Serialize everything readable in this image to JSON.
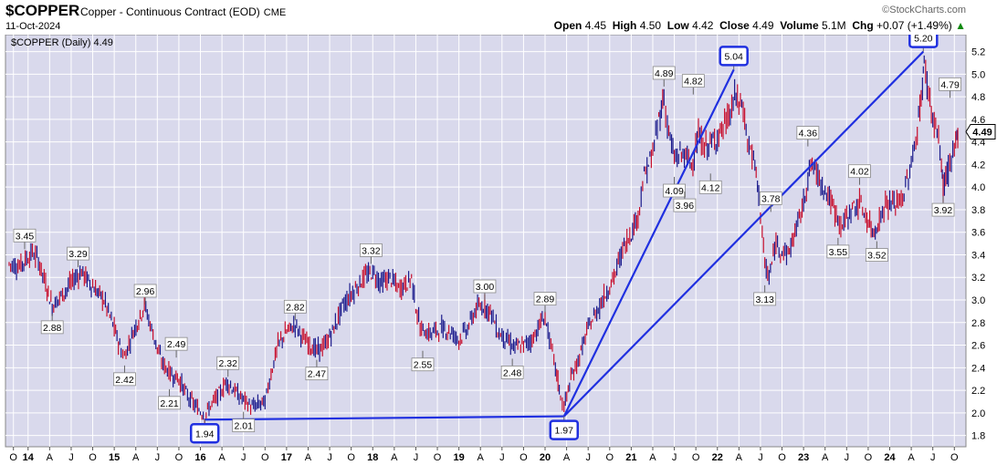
{
  "header": {
    "symbol": "$COPPER",
    "description": "Copper - Continuous Contract (EOD)",
    "exchange": "CME",
    "date": "11-Oct-2024",
    "brand": "©StockCharts.com",
    "open_label": "Open",
    "open": "4.45",
    "high_label": "High",
    "high": "4.50",
    "low_label": "Low",
    "low": "4.42",
    "close_label": "Close",
    "close": "4.49",
    "volume_label": "Volume",
    "volume": "5.1M",
    "chg_label": "Chg",
    "chg": "+0.07 (+1.49%)",
    "chg_arrow": "▲"
  },
  "chart_data": {
    "type": "line",
    "legend_text": "$COPPER (Daily) 4.49",
    "last_price": "4.49",
    "ylim": [
      1.7,
      5.35
    ],
    "y_ticks": [
      1.8,
      2.0,
      2.2,
      2.4,
      2.6,
      2.8,
      3.0,
      3.2,
      3.4,
      3.6,
      3.8,
      4.0,
      4.2,
      4.4,
      4.6,
      4.8,
      5.0,
      5.2
    ],
    "grid": true,
    "x_ticks": [
      {
        "t": 2013.83,
        "label": "O"
      },
      {
        "t": 2014.0,
        "label": "14"
      },
      {
        "t": 2014.25,
        "label": "A"
      },
      {
        "t": 2014.5,
        "label": "J"
      },
      {
        "t": 2014.75,
        "label": "O"
      },
      {
        "t": 2015.0,
        "label": "15"
      },
      {
        "t": 2015.25,
        "label": "A"
      },
      {
        "t": 2015.5,
        "label": "J"
      },
      {
        "t": 2015.75,
        "label": "O"
      },
      {
        "t": 2016.0,
        "label": "16"
      },
      {
        "t": 2016.25,
        "label": "A"
      },
      {
        "t": 2016.5,
        "label": "J"
      },
      {
        "t": 2016.75,
        "label": "O"
      },
      {
        "t": 2017.0,
        "label": "17"
      },
      {
        "t": 2017.25,
        "label": "A"
      },
      {
        "t": 2017.5,
        "label": "J"
      },
      {
        "t": 2017.75,
        "label": "O"
      },
      {
        "t": 2018.0,
        "label": "18"
      },
      {
        "t": 2018.25,
        "label": "A"
      },
      {
        "t": 2018.5,
        "label": "J"
      },
      {
        "t": 2018.75,
        "label": "O"
      },
      {
        "t": 2019.0,
        "label": "19"
      },
      {
        "t": 2019.25,
        "label": "A"
      },
      {
        "t": 2019.5,
        "label": "J"
      },
      {
        "t": 2019.75,
        "label": "O"
      },
      {
        "t": 2020.0,
        "label": "20"
      },
      {
        "t": 2020.25,
        "label": "A"
      },
      {
        "t": 2020.5,
        "label": "J"
      },
      {
        "t": 2020.75,
        "label": "O"
      },
      {
        "t": 2021.0,
        "label": "21"
      },
      {
        "t": 2021.25,
        "label": "A"
      },
      {
        "t": 2021.5,
        "label": "J"
      },
      {
        "t": 2021.75,
        "label": "O"
      },
      {
        "t": 2022.0,
        "label": "22"
      },
      {
        "t": 2022.25,
        "label": "A"
      },
      {
        "t": 2022.5,
        "label": "J"
      },
      {
        "t": 2022.75,
        "label": "O"
      },
      {
        "t": 2023.0,
        "label": "23"
      },
      {
        "t": 2023.25,
        "label": "A"
      },
      {
        "t": 2023.5,
        "label": "J"
      },
      {
        "t": 2023.75,
        "label": "O"
      },
      {
        "t": 2024.0,
        "label": "24"
      },
      {
        "t": 2024.25,
        "label": "A"
      },
      {
        "t": 2024.5,
        "label": "J"
      },
      {
        "t": 2024.75,
        "label": "O"
      }
    ],
    "price_path": [
      [
        2013.78,
        3.32
      ],
      [
        2013.9,
        3.3
      ],
      [
        2014.05,
        3.42
      ],
      [
        2014.12,
        3.35
      ],
      [
        2014.22,
        3.1
      ],
      [
        2014.28,
        2.95
      ],
      [
        2014.4,
        3.05
      ],
      [
        2014.55,
        3.2
      ],
      [
        2014.62,
        3.25
      ],
      [
        2014.75,
        3.12
      ],
      [
        2014.88,
        3.0
      ],
      [
        2015.0,
        2.75
      ],
      [
        2015.08,
        2.55
      ],
      [
        2015.12,
        2.5
      ],
      [
        2015.22,
        2.72
      ],
      [
        2015.3,
        2.85
      ],
      [
        2015.35,
        2.96
      ],
      [
        2015.45,
        2.7
      ],
      [
        2015.55,
        2.45
      ],
      [
        2015.65,
        2.35
      ],
      [
        2015.75,
        2.3
      ],
      [
        2015.85,
        2.15
      ],
      [
        2015.95,
        2.05
      ],
      [
        2016.05,
        1.98
      ],
      [
        2016.15,
        2.1
      ],
      [
        2016.25,
        2.2
      ],
      [
        2016.3,
        2.28
      ],
      [
        2016.45,
        2.15
      ],
      [
        2016.6,
        2.05
      ],
      [
        2016.75,
        2.1
      ],
      [
        2016.82,
        2.35
      ],
      [
        2016.9,
        2.6
      ],
      [
        2017.0,
        2.72
      ],
      [
        2017.1,
        2.78
      ],
      [
        2017.2,
        2.65
      ],
      [
        2017.35,
        2.55
      ],
      [
        2017.45,
        2.6
      ],
      [
        2017.55,
        2.75
      ],
      [
        2017.65,
        2.95
      ],
      [
        2017.8,
        3.1
      ],
      [
        2017.9,
        3.2
      ],
      [
        2018.0,
        3.25
      ],
      [
        2018.1,
        3.15
      ],
      [
        2018.2,
        3.2
      ],
      [
        2018.3,
        3.1
      ],
      [
        2018.4,
        3.15
      ],
      [
        2018.45,
        3.2
      ],
      [
        2018.5,
        2.95
      ],
      [
        2018.55,
        2.75
      ],
      [
        2018.65,
        2.7
      ],
      [
        2018.8,
        2.75
      ],
      [
        2018.9,
        2.72
      ],
      [
        2019.0,
        2.65
      ],
      [
        2019.1,
        2.75
      ],
      [
        2019.2,
        2.92
      ],
      [
        2019.3,
        2.95
      ],
      [
        2019.38,
        2.88
      ],
      [
        2019.45,
        2.72
      ],
      [
        2019.55,
        2.65
      ],
      [
        2019.65,
        2.58
      ],
      [
        2019.75,
        2.6
      ],
      [
        2019.85,
        2.65
      ],
      [
        2019.95,
        2.8
      ],
      [
        2020.0,
        2.85
      ],
      [
        2020.05,
        2.65
      ],
      [
        2020.12,
        2.4
      ],
      [
        2020.18,
        2.15
      ],
      [
        2020.22,
        2.05
      ],
      [
        2020.3,
        2.3
      ],
      [
        2020.4,
        2.5
      ],
      [
        2020.5,
        2.75
      ],
      [
        2020.6,
        2.9
      ],
      [
        2020.7,
        3.05
      ],
      [
        2020.8,
        3.2
      ],
      [
        2020.9,
        3.45
      ],
      [
        2021.0,
        3.6
      ],
      [
        2021.08,
        3.75
      ],
      [
        2021.15,
        4.1
      ],
      [
        2021.25,
        4.3
      ],
      [
        2021.32,
        4.6
      ],
      [
        2021.38,
        4.8
      ],
      [
        2021.42,
        4.55
      ],
      [
        2021.5,
        4.25
      ],
      [
        2021.6,
        4.3
      ],
      [
        2021.7,
        4.2
      ],
      [
        2021.78,
        4.45
      ],
      [
        2021.85,
        4.35
      ],
      [
        2021.95,
        4.4
      ],
      [
        2022.05,
        4.5
      ],
      [
        2022.15,
        4.65
      ],
      [
        2022.2,
        4.8
      ],
      [
        2022.3,
        4.7
      ],
      [
        2022.35,
        4.4
      ],
      [
        2022.42,
        4.25
      ],
      [
        2022.48,
        3.95
      ],
      [
        2022.52,
        3.6
      ],
      [
        2022.55,
        3.3
      ],
      [
        2022.6,
        3.2
      ],
      [
        2022.68,
        3.5
      ],
      [
        2022.75,
        3.45
      ],
      [
        2022.82,
        3.4
      ],
      [
        2022.9,
        3.6
      ],
      [
        2023.0,
        3.85
      ],
      [
        2023.05,
        4.1
      ],
      [
        2023.1,
        4.2
      ],
      [
        2023.2,
        4.05
      ],
      [
        2023.3,
        3.9
      ],
      [
        2023.38,
        3.75
      ],
      [
        2023.45,
        3.65
      ],
      [
        2023.55,
        3.8
      ],
      [
        2023.65,
        3.85
      ],
      [
        2023.72,
        3.75
      ],
      [
        2023.8,
        3.6
      ],
      [
        2023.88,
        3.7
      ],
      [
        2023.95,
        3.85
      ],
      [
        2024.05,
        3.85
      ],
      [
        2024.15,
        3.9
      ],
      [
        2024.25,
        4.2
      ],
      [
        2024.32,
        4.5
      ],
      [
        2024.38,
        4.9
      ],
      [
        2024.4,
        5.1
      ],
      [
        2024.45,
        4.85
      ],
      [
        2024.5,
        4.6
      ],
      [
        2024.55,
        4.5
      ],
      [
        2024.6,
        4.2
      ],
      [
        2024.62,
        4.0
      ],
      [
        2024.68,
        4.15
      ],
      [
        2024.75,
        4.3
      ],
      [
        2024.78,
        4.45
      ],
      [
        2024.8,
        4.49
      ]
    ],
    "annotations": [
      {
        "t": 2013.96,
        "v": 3.45,
        "label": "3.45",
        "pos": "above"
      },
      {
        "t": 2014.28,
        "v": 2.88,
        "label": "2.88",
        "pos": "below"
      },
      {
        "t": 2014.58,
        "v": 3.29,
        "label": "3.29",
        "pos": "above"
      },
      {
        "t": 2015.12,
        "v": 2.42,
        "label": "2.42",
        "pos": "below"
      },
      {
        "t": 2015.36,
        "v": 2.96,
        "label": "2.96",
        "pos": "above"
      },
      {
        "t": 2015.72,
        "v": 2.49,
        "label": "2.49",
        "pos": "above"
      },
      {
        "t": 2015.64,
        "v": 2.21,
        "label": "2.21",
        "pos": "below"
      },
      {
        "t": 2016.05,
        "v": 1.94,
        "label": "1.94",
        "pos": "below",
        "boxed": true
      },
      {
        "t": 2016.32,
        "v": 2.32,
        "label": "2.32",
        "pos": "above"
      },
      {
        "t": 2016.5,
        "v": 2.01,
        "label": "2.01",
        "pos": "below"
      },
      {
        "t": 2017.1,
        "v": 2.82,
        "label": "2.82",
        "pos": "above"
      },
      {
        "t": 2017.35,
        "v": 2.47,
        "label": "2.47",
        "pos": "below"
      },
      {
        "t": 2017.98,
        "v": 3.32,
        "label": "3.32",
        "pos": "above"
      },
      {
        "t": 2018.58,
        "v": 2.55,
        "label": "2.55",
        "pos": "below"
      },
      {
        "t": 2019.3,
        "v": 3.0,
        "label": "3.00",
        "pos": "above"
      },
      {
        "t": 2019.62,
        "v": 2.48,
        "label": "2.48",
        "pos": "below"
      },
      {
        "t": 2020.0,
        "v": 2.89,
        "label": "2.89",
        "pos": "above"
      },
      {
        "t": 2020.22,
        "v": 1.97,
        "label": "1.97",
        "pos": "below",
        "boxed": true
      },
      {
        "t": 2021.38,
        "v": 4.89,
        "label": "4.89",
        "pos": "above"
      },
      {
        "t": 2021.5,
        "v": 4.09,
        "label": "4.09",
        "pos": "below"
      },
      {
        "t": 2021.62,
        "v": 3.96,
        "label": "3.96",
        "pos": "below"
      },
      {
        "t": 2021.72,
        "v": 4.82,
        "label": "4.82",
        "pos": "above"
      },
      {
        "t": 2021.92,
        "v": 4.12,
        "label": "4.12",
        "pos": "below"
      },
      {
        "t": 2022.19,
        "v": 5.04,
        "label": "5.04",
        "pos": "above",
        "boxed": true
      },
      {
        "t": 2022.55,
        "v": 3.13,
        "label": "3.13",
        "pos": "below"
      },
      {
        "t": 2022.62,
        "v": 3.78,
        "label": "3.78",
        "pos": "above"
      },
      {
        "t": 2023.05,
        "v": 4.36,
        "label": "4.36",
        "pos": "above"
      },
      {
        "t": 2023.4,
        "v": 3.55,
        "label": "3.55",
        "pos": "below"
      },
      {
        "t": 2023.65,
        "v": 4.02,
        "label": "4.02",
        "pos": "above"
      },
      {
        "t": 2023.85,
        "v": 3.52,
        "label": "3.52",
        "pos": "below"
      },
      {
        "t": 2024.39,
        "v": 5.2,
        "label": "5.20",
        "pos": "above",
        "boxed": true
      },
      {
        "t": 2024.62,
        "v": 3.92,
        "label": "3.92",
        "pos": "below"
      },
      {
        "t": 2024.7,
        "v": 4.79,
        "label": "4.79",
        "pos": "above"
      }
    ],
    "trendlines": [
      {
        "t1": 2016.05,
        "v1": 1.94,
        "t2": 2020.22,
        "v2": 1.97
      },
      {
        "t1": 2020.22,
        "v1": 1.97,
        "t2": 2022.19,
        "v2": 5.04
      },
      {
        "t1": 2020.22,
        "v1": 1.97,
        "t2": 2024.39,
        "v2": 5.2
      }
    ],
    "colors": {
      "plot_bg": "#d9d9ec",
      "up": "#1a1a8c",
      "down": "#c8102e",
      "trendline": "#2030e0",
      "grid": "#ffffff"
    }
  }
}
